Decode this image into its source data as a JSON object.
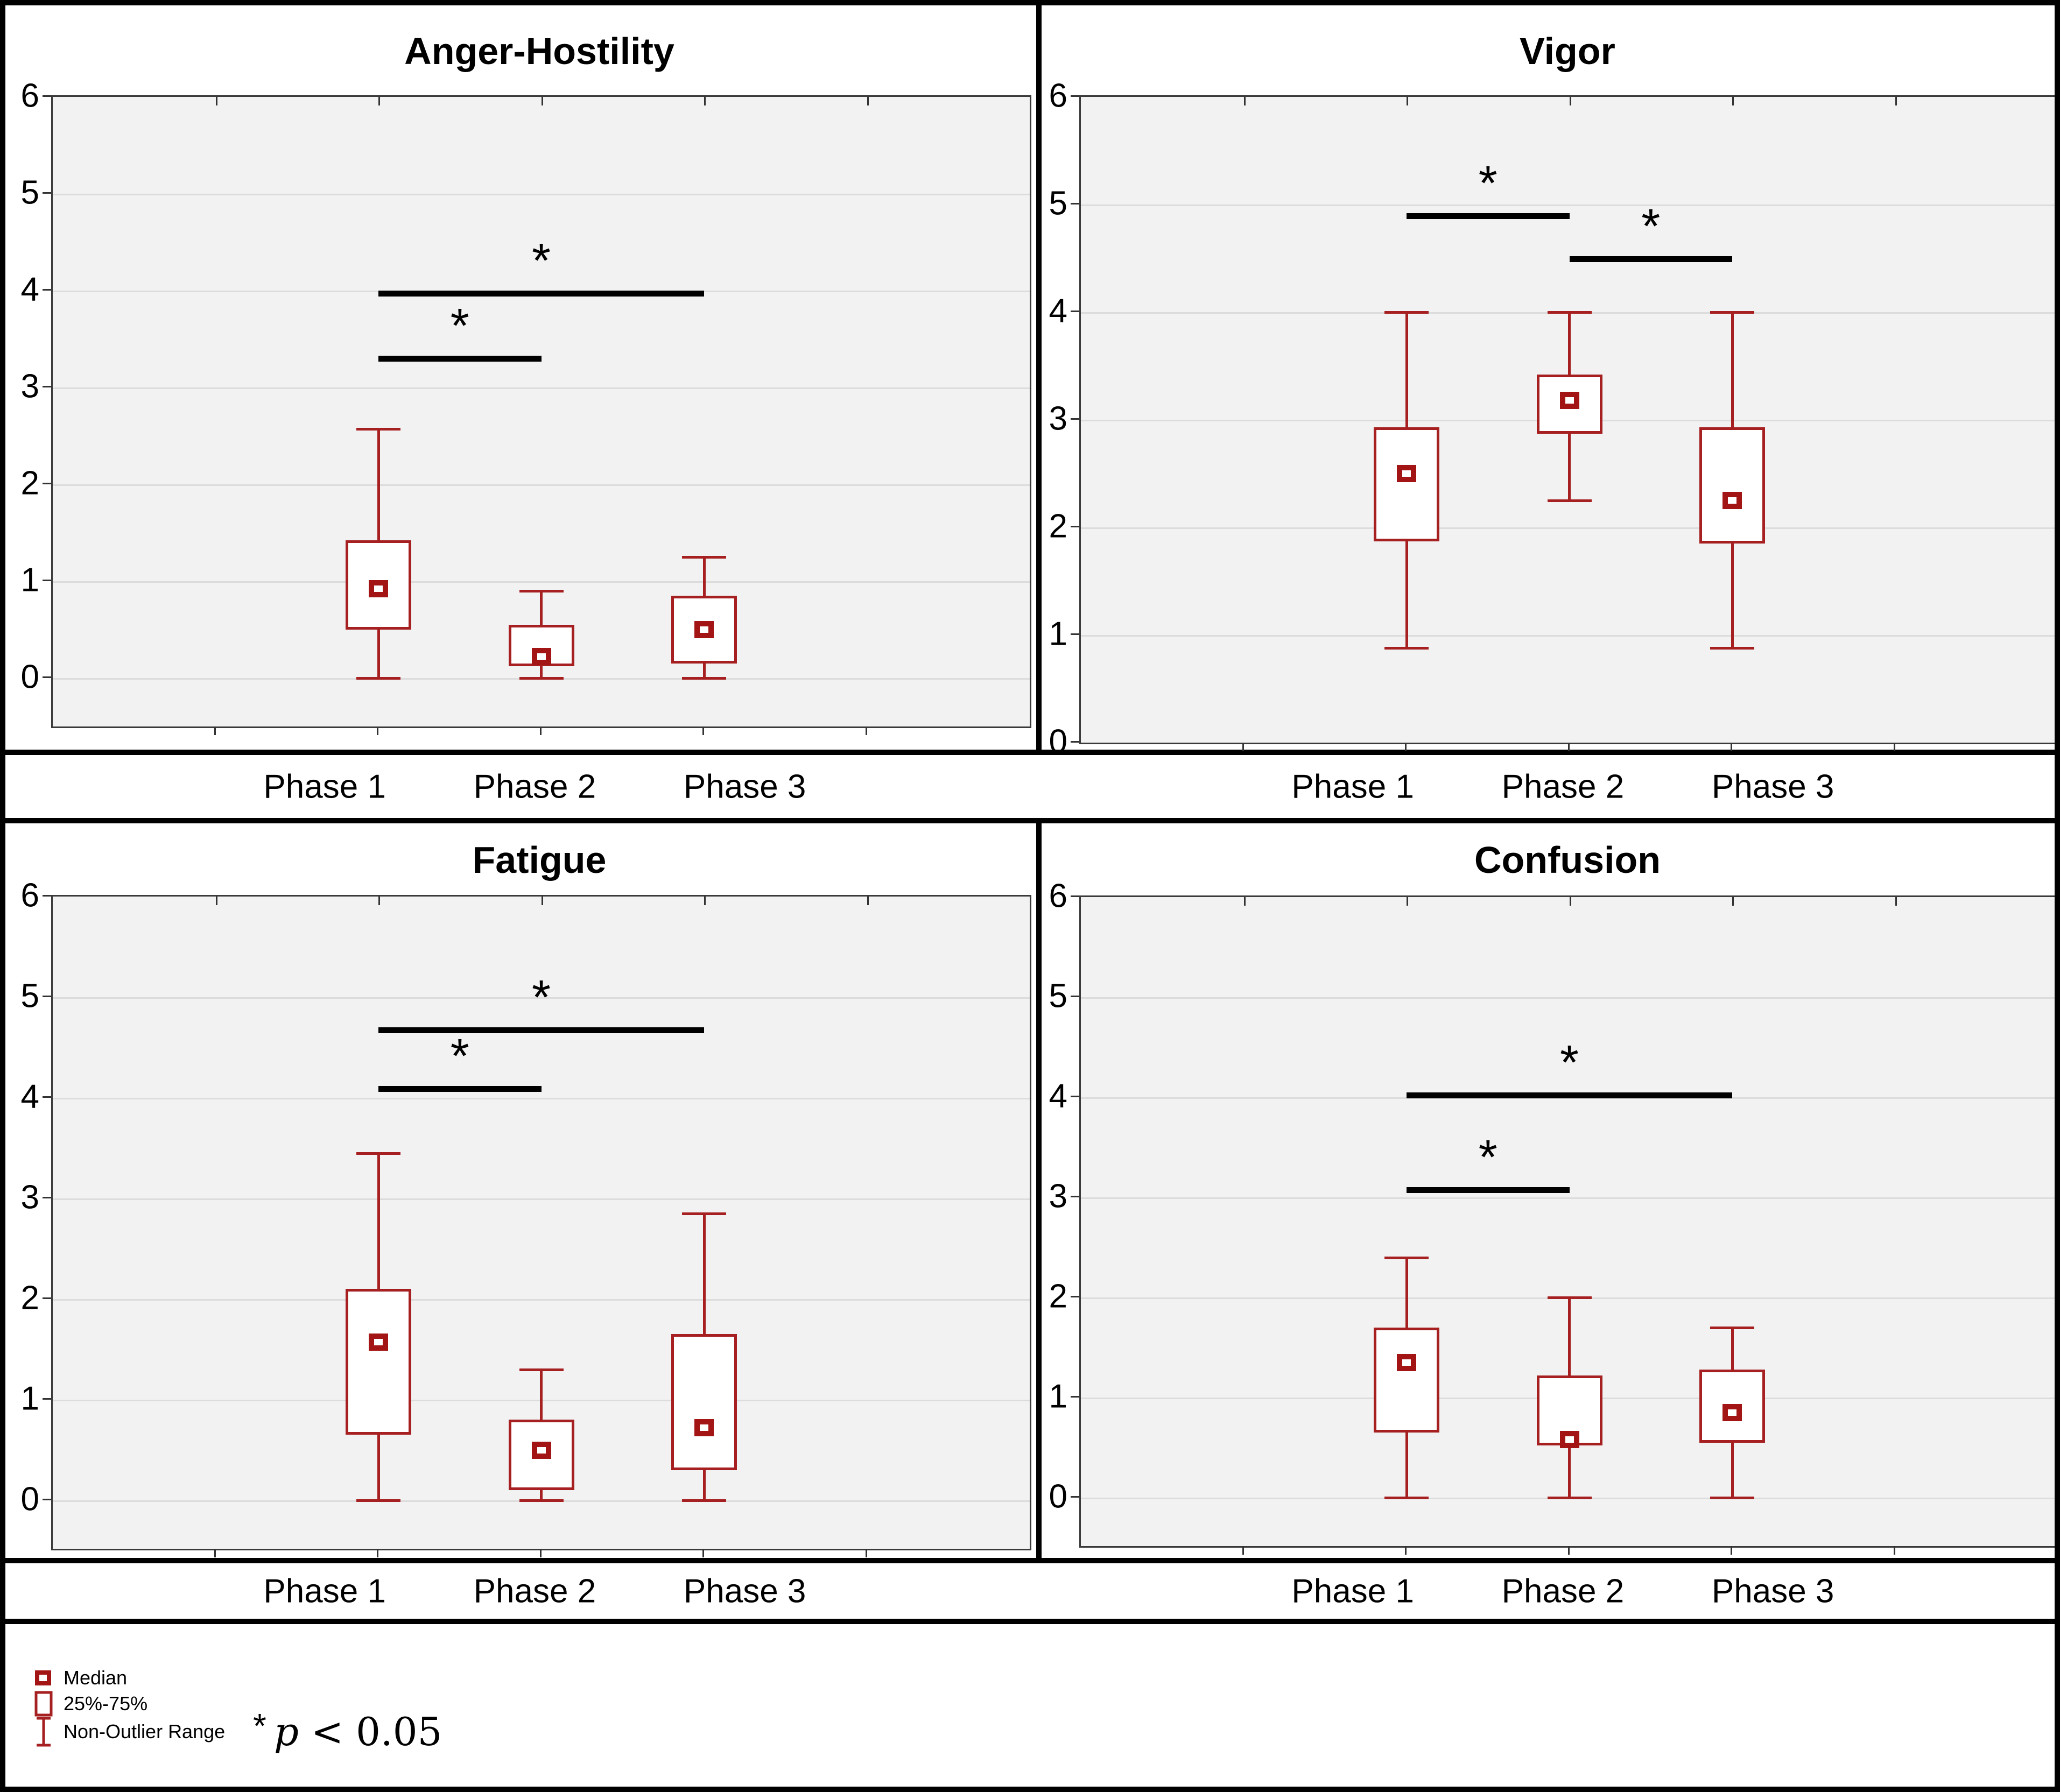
{
  "figure_title": "",
  "chart_data": {
    "type": "box",
    "categories": [
      "Phase 1",
      "Phase 2",
      "Phase 3"
    ],
    "ylim": [
      0,
      6
    ],
    "yticks": [
      0,
      1,
      2,
      3,
      4,
      5,
      6
    ],
    "grid": true,
    "colors": {
      "box_stroke": "#a62021",
      "median_stroke": "#a31414",
      "significance": "#000000",
      "plot_background": "#f2f2f2",
      "gridline": "#dcdcdc",
      "frame": "#3a3a3a",
      "figure_border": "#000000"
    },
    "panels": [
      {
        "title": "Anger-Hostility",
        "series": [
          {
            "phase": "Phase 1",
            "whisker_low": 0,
            "q1": 0.5,
            "median": 0.92,
            "q3": 1.42,
            "whisker_high": 2.57
          },
          {
            "phase": "Phase 2",
            "whisker_low": 0,
            "q1": 0.12,
            "median": 0.22,
            "q3": 0.55,
            "whisker_high": 0.9
          },
          {
            "phase": "Phase 3",
            "whisker_low": 0,
            "q1": 0.15,
            "median": 0.5,
            "q3": 0.85,
            "whisker_high": 1.25
          }
        ],
        "significance": [
          {
            "from": 0,
            "to": 1,
            "y": 3.33,
            "label": "*"
          },
          {
            "from": 0,
            "to": 2,
            "y": 4.0,
            "label": "*"
          }
        ]
      },
      {
        "title": "Vigor",
        "series": [
          {
            "phase": "Phase 1",
            "whisker_low": 0.88,
            "q1": 1.87,
            "median": 2.5,
            "q3": 2.93,
            "whisker_high": 4.0
          },
          {
            "phase": "Phase 2",
            "whisker_low": 2.25,
            "q1": 2.87,
            "median": 3.18,
            "q3": 3.42,
            "whisker_high": 4.0
          },
          {
            "phase": "Phase 3",
            "whisker_low": 0.88,
            "q1": 1.85,
            "median": 2.25,
            "q3": 2.93,
            "whisker_high": 4.0
          }
        ],
        "significance": [
          {
            "from": 0,
            "to": 1,
            "y": 4.92,
            "label": "*"
          },
          {
            "from": 1,
            "to": 2,
            "y": 4.52,
            "label": "*"
          }
        ]
      },
      {
        "title": "Fatigue",
        "series": [
          {
            "phase": "Phase 1",
            "whisker_low": 0,
            "q1": 0.65,
            "median": 1.57,
            "q3": 2.1,
            "whisker_high": 3.45
          },
          {
            "phase": "Phase 2",
            "whisker_low": 0,
            "q1": 0.1,
            "median": 0.5,
            "q3": 0.8,
            "whisker_high": 1.3
          },
          {
            "phase": "Phase 3",
            "whisker_low": 0,
            "q1": 0.3,
            "median": 0.72,
            "q3": 1.65,
            "whisker_high": 2.85
          }
        ],
        "significance": [
          {
            "from": 0,
            "to": 1,
            "y": 4.12,
            "label": "*"
          },
          {
            "from": 0,
            "to": 2,
            "y": 4.7,
            "label": "*"
          }
        ]
      },
      {
        "title": "Confusion",
        "series": [
          {
            "phase": "Phase 1",
            "whisker_low": 0,
            "q1": 0.65,
            "median": 1.35,
            "q3": 1.7,
            "whisker_high": 2.4
          },
          {
            "phase": "Phase 2",
            "whisker_low": 0,
            "q1": 0.52,
            "median": 0.58,
            "q3": 1.22,
            "whisker_high": 2.0
          },
          {
            "phase": "Phase 3",
            "whisker_low": 0,
            "q1": 0.55,
            "median": 0.85,
            "q3": 1.28,
            "whisker_high": 1.7
          }
        ],
        "significance": [
          {
            "from": 0,
            "to": 1,
            "y": 3.1,
            "label": "*"
          },
          {
            "from": 0,
            "to": 2,
            "y": 4.05,
            "label": "*"
          }
        ]
      }
    ],
    "legend": {
      "items": [
        {
          "icon": "median-marker-icon",
          "label": "Median"
        },
        {
          "icon": "iqr-box-icon",
          "label": "25%-75%"
        },
        {
          "icon": "whisker-range-icon",
          "label": "Non-Outlier Range"
        }
      ],
      "note_star": "*",
      "note_p": "p",
      "note_rest": "< 0.05"
    }
  }
}
